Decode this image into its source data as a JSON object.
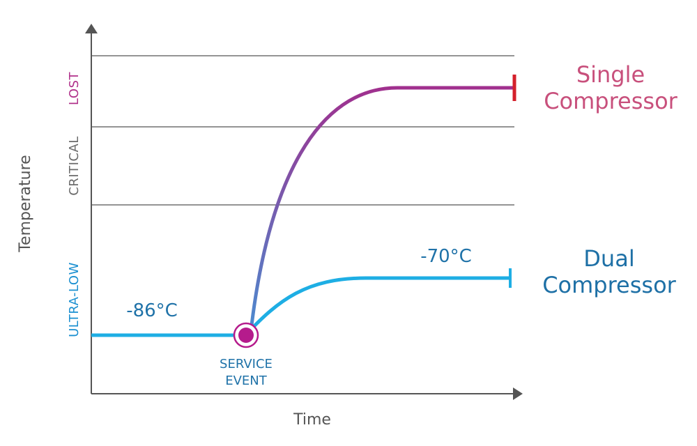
{
  "chart_data": {
    "type": "line",
    "xlabel": "Time",
    "ylabel": "Temperature",
    "zones": [
      {
        "label": "ULTRA-LOW",
        "color": "#1a8fd0"
      },
      {
        "label": "CRITICAL",
        "color": "#6b6b6b"
      },
      {
        "label": "LOST",
        "color": "#b0308a"
      }
    ],
    "event": {
      "label_line1": "SERVICE",
      "label_line2": "EVENT",
      "color": "#b51b8c"
    },
    "series": [
      {
        "name_line1": "Single",
        "name_line2": "Compressor",
        "color": "#c8507c",
        "line_start": "#4b8bd0",
        "line_end": "#a0308e",
        "end_marker": "#d4202b"
      },
      {
        "name_line1": "Dual",
        "name_line2": "Compressor",
        "color": "#1e70a6",
        "line": "#1eaee4",
        "start_label": "-86°C",
        "end_label": "-70°C"
      }
    ]
  }
}
